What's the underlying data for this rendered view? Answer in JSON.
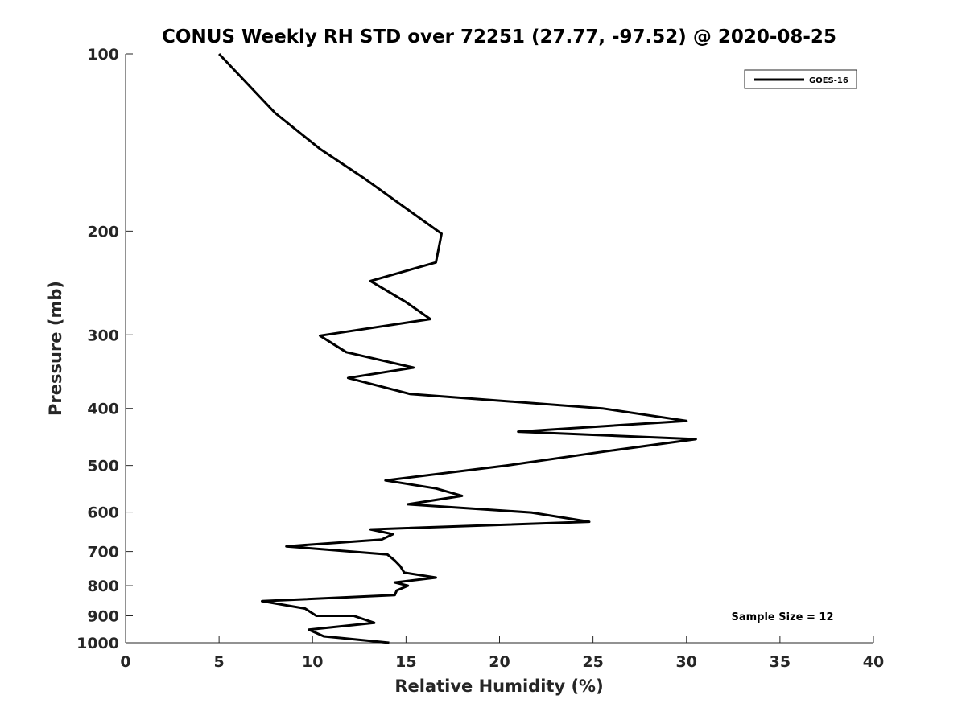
{
  "chart_data": {
    "type": "line",
    "title": "CONUS Weekly RH STD over 72251 (27.77, -97.52) @ 2020-08-25",
    "xlabel": "Relative Humidity (%)",
    "ylabel": "Pressure (mb)",
    "xlim": [
      0,
      40
    ],
    "ylim": [
      100,
      1000
    ],
    "y_scale": "log",
    "y_reversed": true,
    "xticks": [
      0,
      5,
      10,
      15,
      20,
      25,
      30,
      35,
      40
    ],
    "yticks": [
      100,
      200,
      300,
      400,
      500,
      600,
      700,
      800,
      900,
      1000
    ],
    "legend_position": "top-right",
    "grid": false,
    "annotation": "Sample Size = 12",
    "series": [
      {
        "name": "GOES-16",
        "color": "#000000",
        "x": [
          14.1,
          10.6,
          9.8,
          13.3,
          12.2,
          10.2,
          9.6,
          7.3,
          14.4,
          14.5,
          15.1,
          14.4,
          16.6,
          14.9,
          14.7,
          14.4,
          14.0,
          8.6,
          13.7,
          14.3,
          13.1,
          24.8,
          21.7,
          15.1,
          18.0,
          16.6,
          13.9,
          20.4,
          25.3,
          30.5,
          21.0,
          30.0,
          25.5,
          15.2,
          11.9,
          15.4,
          11.8,
          10.4,
          16.3,
          15.0,
          13.1,
          16.6,
          16.9,
          14.8,
          12.8,
          10.4,
          8.0,
          5.0
        ],
        "y": [
          1000,
          975,
          950,
          925,
          900,
          900,
          875,
          850,
          830,
          815,
          800,
          790,
          775,
          760,
          742,
          725,
          708,
          686,
          668,
          654,
          642,
          623,
          601,
          582,
          563,
          547,
          530,
          500,
          475,
          451,
          438,
          420,
          400,
          378,
          355,
          341,
          321,
          301,
          282,
          264,
          243,
          226,
          202,
          181,
          163,
          145,
          126,
          100
        ]
      }
    ]
  }
}
